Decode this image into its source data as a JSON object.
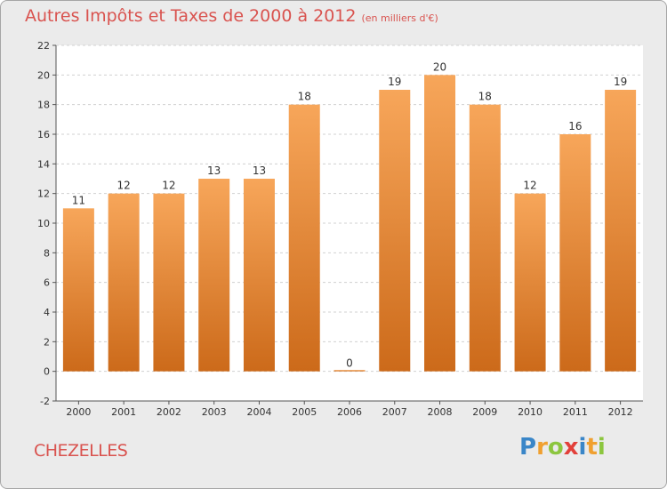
{
  "header": {
    "title": "Autres Impôts et Taxes de 2000 à 2012",
    "unit": "(en milliers d'€)"
  },
  "footer": {
    "commune": "CHEZELLES",
    "logo_letters": [
      {
        "ch": "P",
        "color": "#3a86c8"
      },
      {
        "ch": "r",
        "color": "#f0a030"
      },
      {
        "ch": "o",
        "color": "#8cc63f"
      },
      {
        "ch": "x",
        "color": "#e2403a"
      },
      {
        "ch": "i",
        "color": "#3a86c8"
      },
      {
        "ch": "t",
        "color": "#f0a030"
      },
      {
        "ch": "i",
        "color": "#8cc63f"
      }
    ]
  },
  "chart_data": {
    "type": "bar",
    "title": "Autres Impôts et Taxes de 2000 à 2012",
    "subtitle": "(en milliers d'€)",
    "categories": [
      "2000",
      "2001",
      "2002",
      "2003",
      "2004",
      "2005",
      "2006",
      "2007",
      "2008",
      "2009",
      "2010",
      "2011",
      "2012"
    ],
    "values": [
      11,
      12,
      12,
      13,
      13,
      18,
      0,
      19,
      20,
      18,
      12,
      16,
      19
    ],
    "ylim": [
      -2,
      22
    ],
    "yticks": [
      -2,
      0,
      2,
      4,
      6,
      8,
      10,
      12,
      14,
      16,
      18,
      20,
      22
    ],
    "grid": true,
    "bar_color_top": "#f7a65a",
    "bar_color_bottom": "#cc6a1a"
  }
}
